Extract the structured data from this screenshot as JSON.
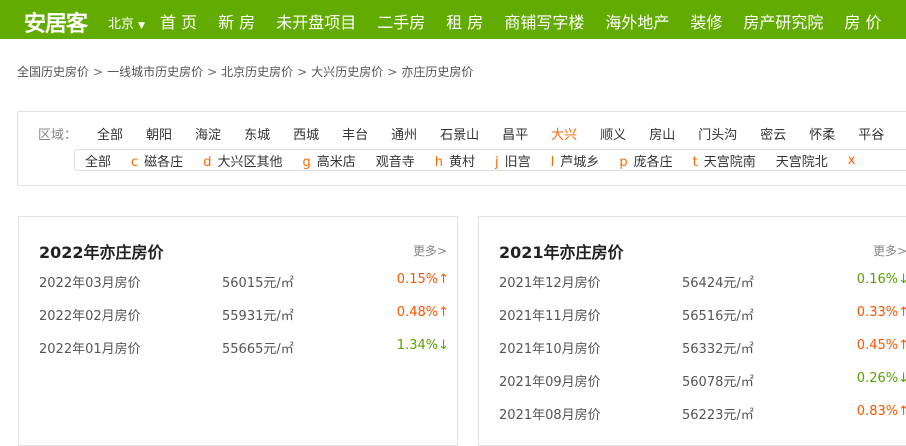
{
  "header": {
    "logo": "安居客",
    "city": "北京",
    "nav": [
      "首 页",
      "新 房",
      "未开盘项目",
      "二手房",
      "租 房",
      "商铺写字楼",
      "海外地产",
      "装修",
      "房产研究院",
      "房 价"
    ],
    "color": "#62ab00"
  },
  "breadcrumb": [
    "全国历史房价",
    "一线城市历史房价",
    "北京历史房价",
    "大兴历史房价",
    "亦庄历史房价"
  ],
  "filter": {
    "label": "区域：",
    "districts": [
      "全部",
      "朝阳",
      "海淀",
      "东城",
      "西城",
      "丰台",
      "通州",
      "石景山",
      "昌平",
      "大兴",
      "顺义",
      "房山",
      "门头沟",
      "密云",
      "怀柔",
      "平谷"
    ],
    "active": "大兴",
    "subareas": [
      {
        "k": "",
        "n": "全部"
      },
      {
        "k": "c",
        "n": "磁各庄"
      },
      {
        "k": "d",
        "n": "大兴区其他"
      },
      {
        "k": "g",
        "n": "高米店"
      },
      {
        "k": "",
        "n": "观音寺"
      },
      {
        "k": "h",
        "n": "黄村"
      },
      {
        "k": "j",
        "n": "旧宫"
      },
      {
        "k": "l",
        "n": "芦城乡"
      },
      {
        "k": "p",
        "n": "庞各庄"
      },
      {
        "k": "t",
        "n": "天宫院南"
      },
      {
        "k": "",
        "n": "天宫院北"
      },
      {
        "k": "x",
        "n": ""
      }
    ]
  },
  "cards": [
    {
      "title": "2022年亦庄房价",
      "more": "更多>",
      "rows": [
        {
          "d": "2022年03月房价",
          "p": "56015元/㎡",
          "c": "0.15%↑",
          "up": true
        },
        {
          "d": "2022年02月房价",
          "p": "55931元/㎡",
          "c": "0.48%↑",
          "up": true
        },
        {
          "d": "2022年01月房价",
          "p": "55665元/㎡",
          "c": "1.34%↓",
          "up": false
        }
      ]
    },
    {
      "title": "2021年亦庄房价",
      "more": "更多>",
      "rows": [
        {
          "d": "2021年12月房价",
          "p": "56424元/㎡",
          "c": "0.16%↓",
          "up": false
        },
        {
          "d": "2021年11月房价",
          "p": "56516元/㎡",
          "c": "0.33%↑",
          "up": true
        },
        {
          "d": "2021年10月房价",
          "p": "56332元/㎡",
          "c": "0.45%↑",
          "up": true
        },
        {
          "d": "2021年09月房价",
          "p": "56078元/㎡",
          "c": "0.26%↓",
          "up": false
        },
        {
          "d": "2021年08月房价",
          "p": "56223元/㎡",
          "c": "0.83%↑",
          "up": true
        }
      ]
    }
  ]
}
